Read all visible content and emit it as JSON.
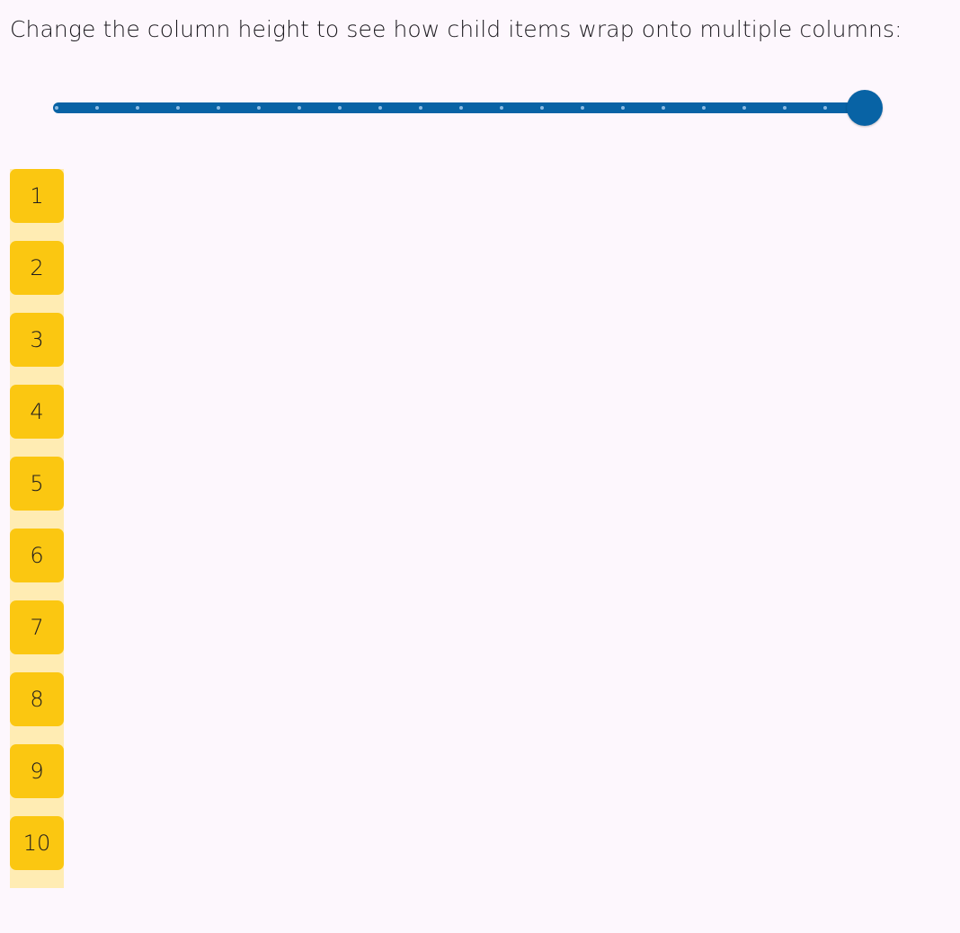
{
  "instruction": "Change the column height to see how child items wrap onto multiple columns:",
  "slider": {
    "value_fraction": 1.0,
    "divisions": 20,
    "color": "#0863a5"
  },
  "items": [
    "1",
    "2",
    "3",
    "4",
    "5",
    "6",
    "7",
    "8",
    "9",
    "10"
  ],
  "colors": {
    "item": "#fbc711",
    "column_background": "#ffecb3",
    "page_background": "#fdf7fd"
  }
}
